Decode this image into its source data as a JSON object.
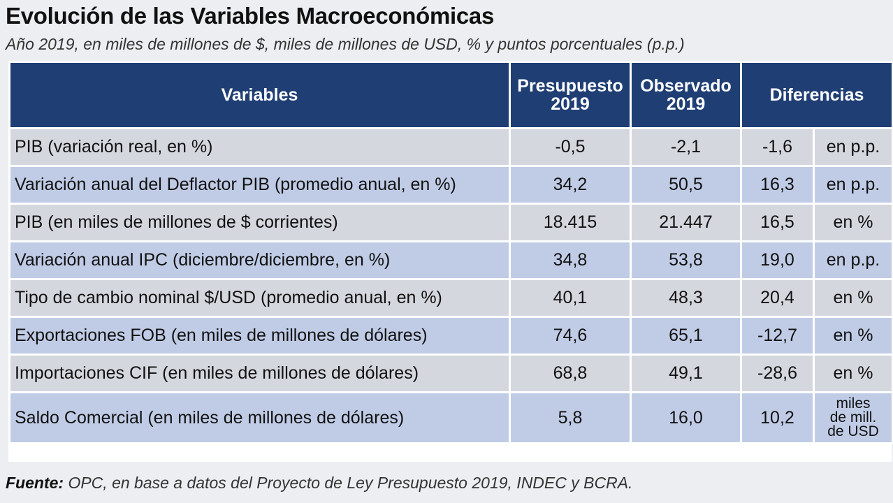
{
  "title": "Evolución de las Variables Macroeconómicas",
  "subtitle": "Año 2019, en miles de millones de $, miles de millones de USD, % y puntos porcentuales (p.p.)",
  "table": {
    "headers": {
      "variables": "Variables",
      "presupuesto_line1": "Presupuesto",
      "presupuesto_line2": "2019",
      "observado_line1": "Observado",
      "observado_line2": "2019",
      "diferencias": "Diferencias"
    },
    "rows": [
      {
        "variable": "PIB (variación real, en %)",
        "presupuesto": "-0,5",
        "observado": "-2,1",
        "diferencia": "-1,6",
        "unidad": "en p.p."
      },
      {
        "variable": "Variación anual del Deflactor PIB (promedio anual, en %)",
        "presupuesto": "34,2",
        "observado": "50,5",
        "diferencia": "16,3",
        "unidad": "en p.p."
      },
      {
        "variable": "PIB (en miles de millones de $ corrientes)",
        "presupuesto": "18.415",
        "observado": "21.447",
        "diferencia": "16,5",
        "unidad": "en %"
      },
      {
        "variable": "Variación anual IPC (diciembre/diciembre, en %)",
        "presupuesto": "34,8",
        "observado": "53,8",
        "diferencia": "19,0",
        "unidad": "en p.p."
      },
      {
        "variable": "Tipo de cambio nominal $/USD (promedio anual, en %)",
        "presupuesto": "40,1",
        "observado": "48,3",
        "diferencia": "20,4",
        "unidad": "en %"
      },
      {
        "variable": "Exportaciones FOB (en miles de millones de dólares)",
        "presupuesto": "74,6",
        "observado": "65,1",
        "diferencia": "-12,7",
        "unidad": "en %"
      },
      {
        "variable": "Importaciones CIF (en miles de millones de dólares)",
        "presupuesto": "68,8",
        "observado": "49,1",
        "diferencia": "-28,6",
        "unidad": "en %"
      },
      {
        "variable": "Saldo Comercial (en miles de millones de dólares)",
        "presupuesto": "5,8",
        "observado": "16,0",
        "diferencia": "10,2",
        "unidad_line1": "miles",
        "unidad_line2": "de mill.",
        "unidad_line3": "de USD"
      }
    ]
  },
  "source": {
    "label": "Fuente:",
    "text": " OPC, en base a datos del Proyecto de Ley Presupuesto 2019, INDEC y BCRA."
  },
  "colors": {
    "header": "#1f3e74",
    "row_gray": "#d4d7de",
    "row_blue": "#c0cce6"
  }
}
